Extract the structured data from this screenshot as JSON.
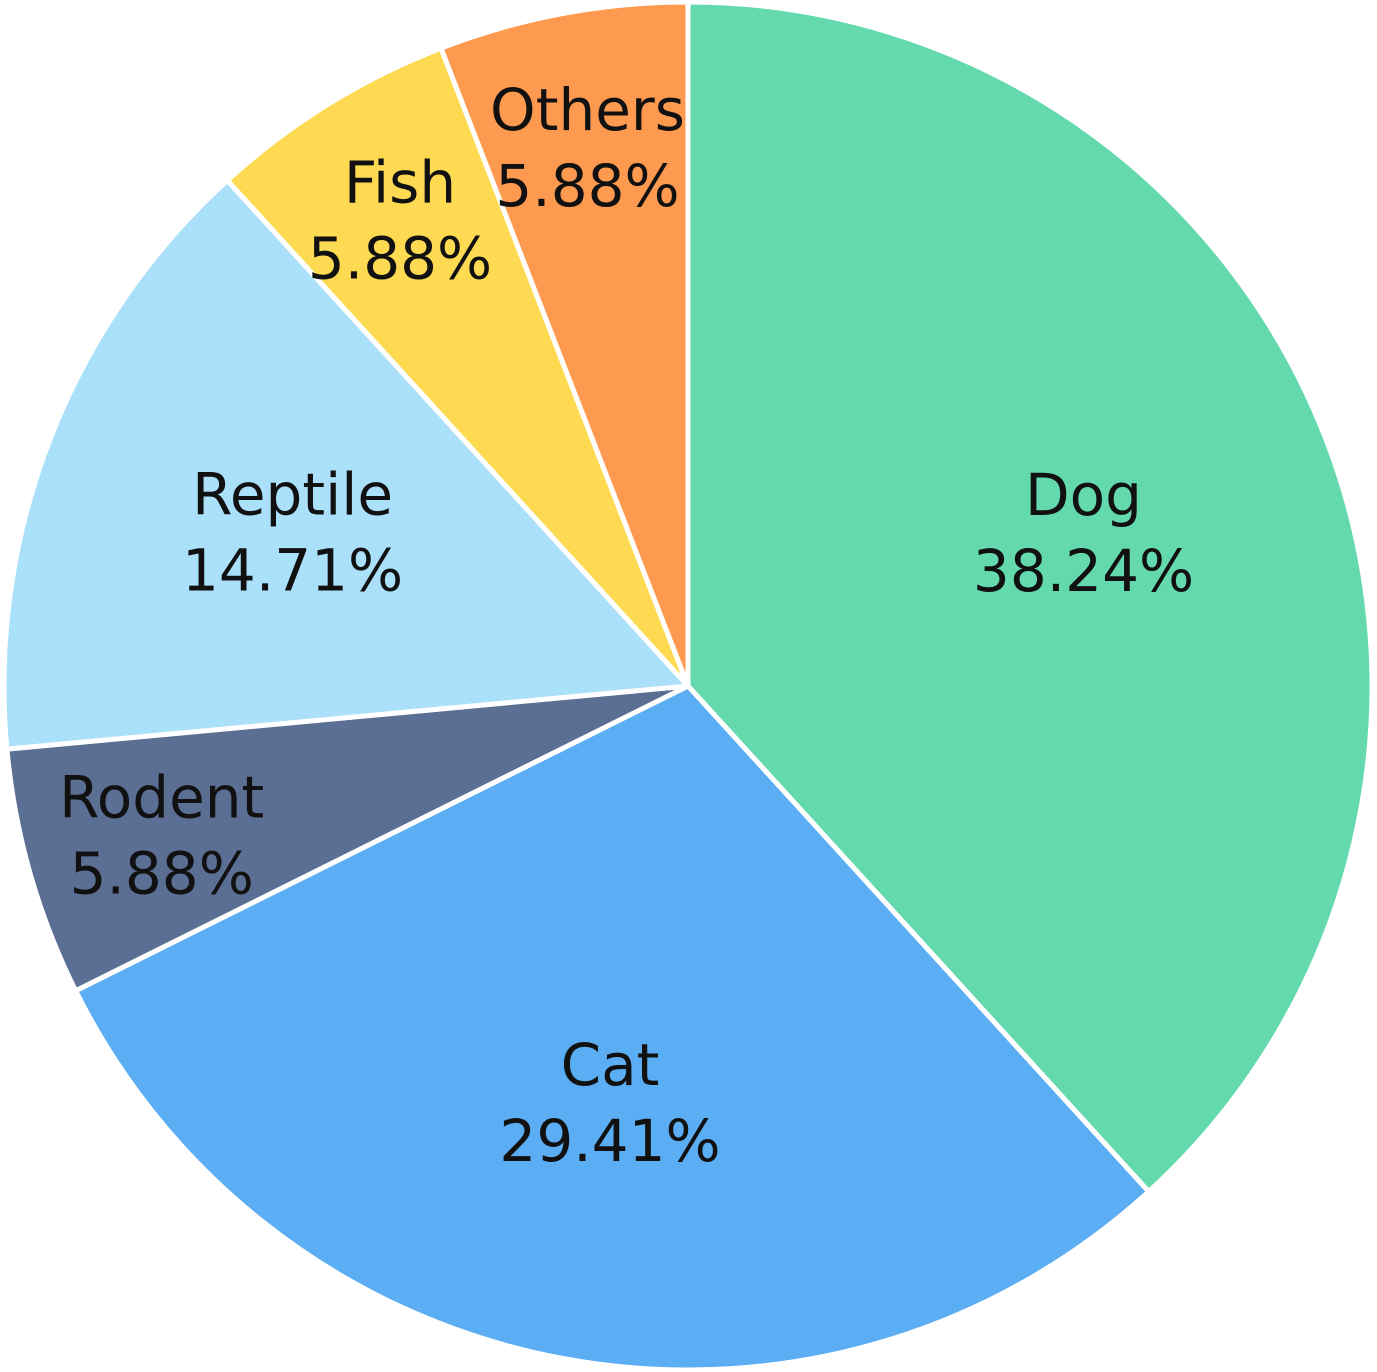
{
  "chart_data": {
    "type": "pie",
    "start_angle_deg": 0,
    "direction": "clockwise",
    "slices": [
      {
        "name": "Dog",
        "label": "38.24%",
        "value": 38.24,
        "color": "#64D9AD"
      },
      {
        "name": "Cat",
        "label": "29.41%",
        "value": 29.41,
        "color": "#5BADF4"
      },
      {
        "name": "Rodent",
        "label": "5.88%",
        "value": 5.88,
        "color": "#5B6E94"
      },
      {
        "name": "Reptile",
        "label": "14.71%",
        "value": 14.71,
        "color": "#AAE0FA"
      },
      {
        "name": "Fish",
        "label": "5.88%",
        "value": 5.88,
        "color": "#FDDA51"
      },
      {
        "name": "Others",
        "label": "5.88%",
        "value": 5.88,
        "color": "#FE9A50"
      }
    ]
  }
}
